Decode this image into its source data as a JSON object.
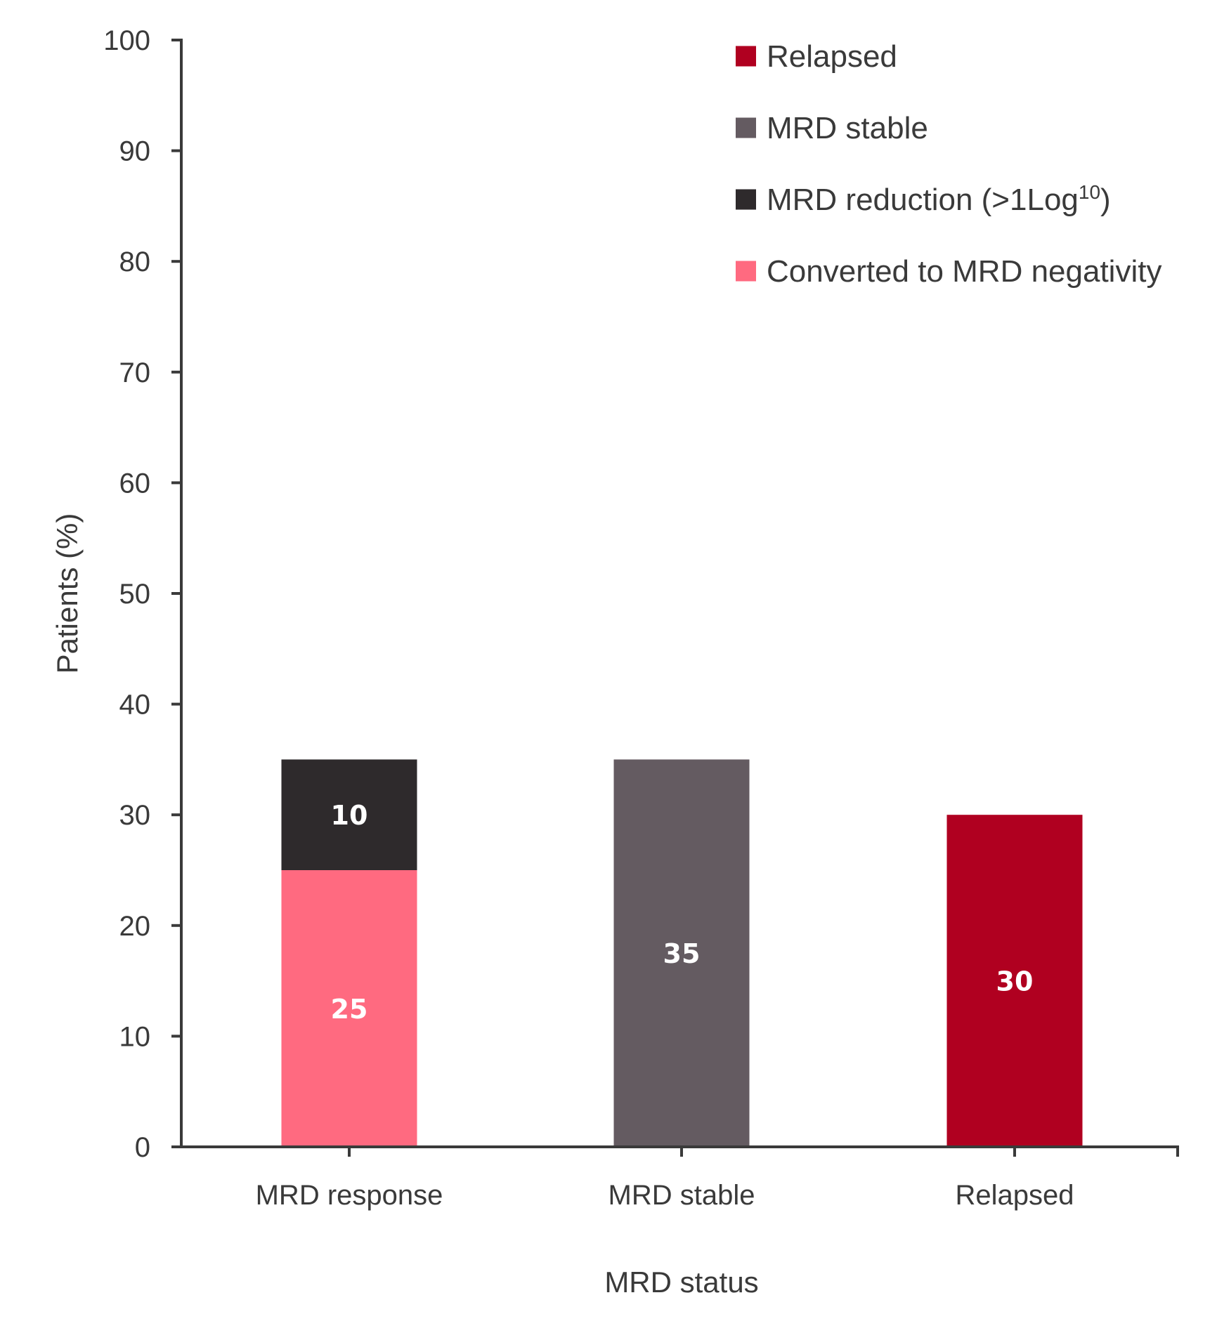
{
  "chart_data": {
    "type": "bar",
    "stacked": true,
    "title": "",
    "xlabel": "MRD status",
    "ylabel": "Patients (%)",
    "ylim": [
      0,
      100
    ],
    "yticks": [
      0,
      10,
      20,
      30,
      40,
      50,
      60,
      70,
      80,
      90,
      100
    ],
    "grid": false,
    "categories": [
      "MRD response",
      "MRD stable",
      "Relapsed"
    ],
    "series": [
      {
        "name": "Converted to MRD negativity",
        "color": "#ff6a80",
        "values": [
          25,
          0,
          0
        ]
      },
      {
        "name": "MRD reduction (>1Log10)",
        "color": "#2e2a2c",
        "values": [
          10,
          0,
          0
        ]
      },
      {
        "name": "MRD stable",
        "color": "#645b61",
        "values": [
          0,
          35,
          0
        ]
      },
      {
        "name": "Relapsed",
        "color": "#b00020",
        "values": [
          0,
          0,
          30
        ]
      }
    ],
    "legend": {
      "position": "top-right",
      "entries": [
        {
          "label": "Relapsed",
          "color": "#b00020"
        },
        {
          "label": "MRD stable",
          "color": "#645b61"
        },
        {
          "label": "MRD reduction (>1Log",
          "superscript": "10",
          "suffix": ")",
          "color": "#2e2a2c"
        },
        {
          "label": "Converted to MRD negativity",
          "color": "#ff6a80"
        }
      ]
    }
  },
  "colors": {
    "axis": "#3a3a3a",
    "text": "#3a3a3a",
    "data_label": "#ffffff"
  }
}
